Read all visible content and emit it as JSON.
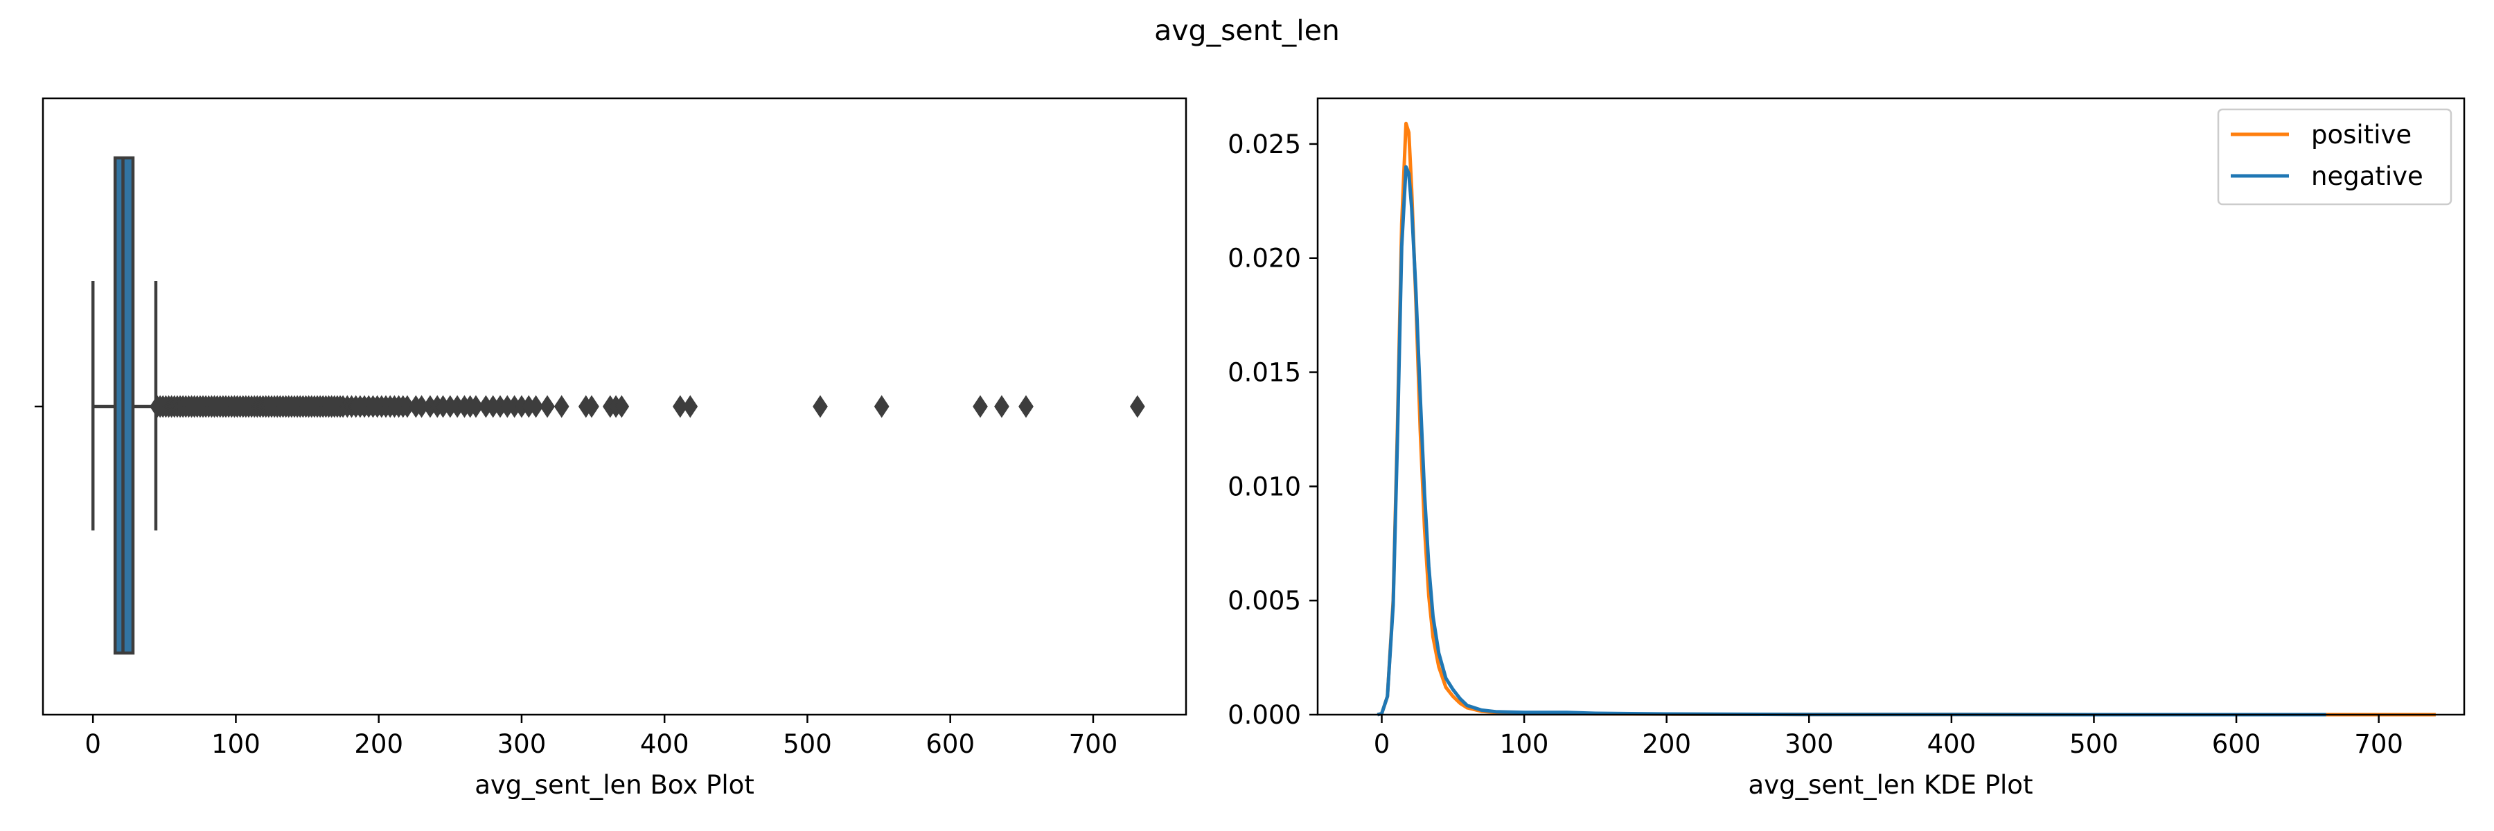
{
  "suptitle": "avg_sent_len",
  "colors": {
    "box_fill": "#3274a1",
    "box_edge": "#3d3d3d",
    "positive": "#ff7f0e",
    "negative": "#1f77b4"
  },
  "chart_data": [
    {
      "type": "box",
      "xlabel": "avg_sent_len Box Plot",
      "xlim": [
        -35,
        765
      ],
      "xticks": [
        0,
        100,
        200,
        300,
        400,
        500,
        600,
        700
      ],
      "yticks": [
        ""
      ],
      "grid": false,
      "box": {
        "whisker_low": 0,
        "q1": 15.5,
        "median": 21,
        "q3": 28,
        "whisker_high": 44
      },
      "outliers": [
        45,
        47,
        49,
        51,
        53,
        55,
        57,
        59,
        61,
        63,
        65,
        67,
        69,
        71,
        73,
        75,
        77,
        79,
        81,
        83,
        85,
        87,
        89,
        91,
        93,
        95,
        97,
        99,
        101,
        103,
        105,
        107,
        109,
        111,
        113,
        115,
        117,
        119,
        121,
        123,
        125,
        127,
        129,
        131,
        133,
        135,
        137,
        139,
        141,
        143,
        145,
        147,
        149,
        151,
        153,
        155,
        157,
        159,
        161,
        163,
        165,
        167,
        169,
        171,
        173,
        175,
        178,
        181,
        184,
        187,
        190,
        193,
        196,
        199,
        202,
        205,
        208,
        211,
        214,
        217,
        220,
        226,
        230,
        236,
        241,
        245,
        250,
        255,
        260,
        264,
        268,
        275,
        280,
        285,
        290,
        295,
        300,
        305,
        310,
        318,
        328,
        345,
        349,
        362,
        366,
        370,
        411,
        418,
        509,
        552,
        621,
        636,
        653,
        731
      ]
    },
    {
      "type": "line",
      "xlabel": "avg_sent_len KDE Plot",
      "xlim": [
        -45,
        760
      ],
      "ylim": [
        0,
        0.027
      ],
      "xticks": [
        0,
        100,
        200,
        300,
        400,
        500,
        600,
        700
      ],
      "yticks": [
        "0.000",
        "0.005",
        "0.010",
        "0.015",
        "0.020",
        "0.025"
      ],
      "ytick_values": [
        0,
        0.005,
        0.01,
        0.015,
        0.02,
        0.025
      ],
      "grid": false,
      "legend": "top-right",
      "series": [
        {
          "name": "positive",
          "x": [
            -3,
            0,
            4,
            8,
            11,
            14,
            17,
            19,
            21,
            24,
            27,
            30,
            33,
            36,
            40,
            45,
            50,
            55,
            60,
            70,
            80,
            100,
            150,
            200,
            300,
            400,
            500,
            600,
            650,
            700,
            740
          ],
          "y": [
            0,
            5e-05,
            0.0008,
            0.005,
            0.0125,
            0.0215,
            0.0259,
            0.0255,
            0.023,
            0.018,
            0.0125,
            0.0082,
            0.0052,
            0.0034,
            0.0021,
            0.0012,
            0.0008,
            0.0005,
            0.0003,
            0.00015,
            0.0001,
            8e-05,
            4e-05,
            2e-05,
            1e-05,
            1e-05,
            0,
            0,
            0,
            0,
            0
          ]
        },
        {
          "name": "negative",
          "x": [
            -3,
            0,
            4,
            8,
            11,
            14,
            17,
            19,
            21,
            24,
            27,
            30,
            33,
            36,
            40,
            45,
            50,
            55,
            60,
            70,
            80,
            100,
            130,
            150,
            200,
            300,
            400,
            500,
            600,
            663
          ],
          "y": [
            0,
            5e-05,
            0.0008,
            0.0048,
            0.012,
            0.0205,
            0.024,
            0.0237,
            0.0222,
            0.0185,
            0.014,
            0.0097,
            0.0065,
            0.0043,
            0.0027,
            0.0016,
            0.0011,
            0.0007,
            0.0004,
            0.0002,
            0.00013,
            0.0001,
            0.0001,
            6e-05,
            3e-05,
            1e-05,
            1e-05,
            0,
            0,
            0
          ]
        }
      ]
    }
  ]
}
